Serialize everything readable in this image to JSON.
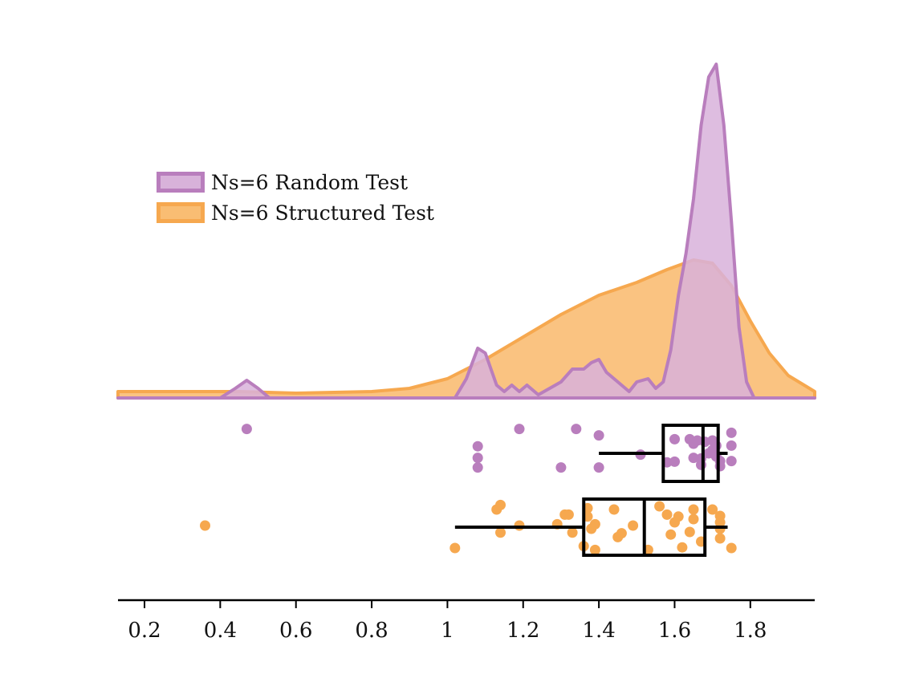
{
  "chart_data": {
    "type": "raincloud",
    "title": "",
    "xlabel": "",
    "ylabel": "",
    "xlim": [
      0.13,
      1.97
    ],
    "xticks": [
      0.2,
      0.4,
      0.6,
      0.8,
      1,
      1.2,
      1.4,
      1.6,
      1.8
    ],
    "xtick_labels": [
      "0.2",
      "0.4",
      "0.6",
      "0.8",
      "1",
      "1.2",
      "1.4",
      "1.6",
      "1.8"
    ],
    "grid": false,
    "legend_position": "upper-left",
    "series": [
      {
        "name": "Ns=6 Random Test",
        "fill": "#d8b2da",
        "stroke": "#b97ebd",
        "dot": "#b97ebd",
        "density": [
          [
            0.13,
            0.0
          ],
          [
            0.4,
            0.0
          ],
          [
            0.44,
            0.03
          ],
          [
            0.47,
            0.055
          ],
          [
            0.5,
            0.03
          ],
          [
            0.53,
            0.0
          ],
          [
            1.02,
            0.0
          ],
          [
            1.05,
            0.06
          ],
          [
            1.08,
            0.155
          ],
          [
            1.1,
            0.14
          ],
          [
            1.13,
            0.04
          ],
          [
            1.15,
            0.02
          ],
          [
            1.17,
            0.04
          ],
          [
            1.19,
            0.02
          ],
          [
            1.21,
            0.04
          ],
          [
            1.24,
            0.01
          ],
          [
            1.27,
            0.03
          ],
          [
            1.3,
            0.05
          ],
          [
            1.33,
            0.09
          ],
          [
            1.36,
            0.09
          ],
          [
            1.38,
            0.11
          ],
          [
            1.4,
            0.12
          ],
          [
            1.42,
            0.08
          ],
          [
            1.45,
            0.05
          ],
          [
            1.48,
            0.02
          ],
          [
            1.5,
            0.05
          ],
          [
            1.53,
            0.06
          ],
          [
            1.55,
            0.03
          ],
          [
            1.57,
            0.05
          ],
          [
            1.59,
            0.15
          ],
          [
            1.61,
            0.32
          ],
          [
            1.63,
            0.45
          ],
          [
            1.65,
            0.62
          ],
          [
            1.67,
            0.85
          ],
          [
            1.69,
            1.0
          ],
          [
            1.71,
            1.04
          ],
          [
            1.73,
            0.85
          ],
          [
            1.75,
            0.55
          ],
          [
            1.77,
            0.22
          ],
          [
            1.79,
            0.05
          ],
          [
            1.81,
            0.0
          ],
          [
            1.97,
            0.0
          ]
        ],
        "points": [
          [
            0.47,
            0.12
          ],
          [
            1.08,
            0.39
          ],
          [
            1.08,
            0.57
          ],
          [
            1.08,
            0.72
          ],
          [
            1.19,
            0.12
          ],
          [
            1.3,
            0.72
          ],
          [
            1.34,
            0.12
          ],
          [
            1.4,
            0.22
          ],
          [
            1.4,
            0.72
          ],
          [
            1.51,
            0.52
          ],
          [
            1.58,
            0.64
          ],
          [
            1.6,
            0.28
          ],
          [
            1.6,
            0.63
          ],
          [
            1.64,
            0.28
          ],
          [
            1.65,
            0.35
          ],
          [
            1.65,
            0.57
          ],
          [
            1.66,
            0.3
          ],
          [
            1.67,
            0.58
          ],
          [
            1.67,
            0.68
          ],
          [
            1.68,
            0.32
          ],
          [
            1.69,
            0.5
          ],
          [
            1.7,
            0.3
          ],
          [
            1.7,
            0.45
          ],
          [
            1.71,
            0.38
          ],
          [
            1.71,
            0.55
          ],
          [
            1.72,
            0.62
          ],
          [
            1.72,
            0.7
          ],
          [
            1.75,
            0.18
          ],
          [
            1.75,
            0.38
          ],
          [
            1.75,
            0.62
          ]
        ],
        "box": {
          "whisker_low": 1.4,
          "q1": 1.57,
          "median": 1.675,
          "q3": 1.715,
          "whisker_high": 1.74
        }
      },
      {
        "name": "Ns=6 Structured Test",
        "fill": "#f9bd73",
        "stroke": "#f6a84f",
        "dot": "#f6a84f",
        "density": [
          [
            0.13,
            0.02
          ],
          [
            0.3,
            0.02
          ],
          [
            0.45,
            0.02
          ],
          [
            0.6,
            0.015
          ],
          [
            0.8,
            0.02
          ],
          [
            0.9,
            0.03
          ],
          [
            1.0,
            0.06
          ],
          [
            1.1,
            0.12
          ],
          [
            1.2,
            0.19
          ],
          [
            1.3,
            0.26
          ],
          [
            1.4,
            0.32
          ],
          [
            1.5,
            0.36
          ],
          [
            1.58,
            0.4
          ],
          [
            1.65,
            0.43
          ],
          [
            1.7,
            0.42
          ],
          [
            1.75,
            0.35
          ],
          [
            1.8,
            0.24
          ],
          [
            1.85,
            0.14
          ],
          [
            1.9,
            0.07
          ],
          [
            1.97,
            0.02
          ]
        ],
        "points": [
          [
            0.36,
            0.5
          ],
          [
            1.02,
            0.85
          ],
          [
            1.13,
            0.25
          ],
          [
            1.14,
            0.18
          ],
          [
            1.14,
            0.61
          ],
          [
            1.19,
            0.5
          ],
          [
            1.29,
            0.48
          ],
          [
            1.31,
            0.33
          ],
          [
            1.32,
            0.33
          ],
          [
            1.33,
            0.61
          ],
          [
            1.36,
            0.82
          ],
          [
            1.37,
            0.23
          ],
          [
            1.37,
            0.36
          ],
          [
            1.38,
            0.55
          ],
          [
            1.39,
            0.48
          ],
          [
            1.39,
            0.88
          ],
          [
            1.44,
            0.25
          ],
          [
            1.45,
            0.68
          ],
          [
            1.46,
            0.62
          ],
          [
            1.49,
            0.5
          ],
          [
            1.53,
            0.88
          ],
          [
            1.56,
            0.2
          ],
          [
            1.58,
            0.33
          ],
          [
            1.59,
            0.64
          ],
          [
            1.6,
            0.45
          ],
          [
            1.61,
            0.36
          ],
          [
            1.62,
            0.84
          ],
          [
            1.64,
            0.6
          ],
          [
            1.65,
            0.25
          ],
          [
            1.65,
            0.4
          ],
          [
            1.67,
            0.75
          ],
          [
            1.7,
            0.25
          ],
          [
            1.72,
            0.35
          ],
          [
            1.72,
            0.45
          ],
          [
            1.72,
            0.55
          ],
          [
            1.72,
            0.7
          ],
          [
            1.75,
            0.85
          ]
        ],
        "box": {
          "whisker_low": 1.02,
          "q1": 1.36,
          "median": 1.52,
          "q3": 1.68,
          "whisker_high": 1.74
        }
      }
    ]
  }
}
